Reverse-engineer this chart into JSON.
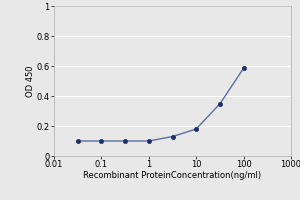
{
  "x_values": [
    0.032,
    0.1,
    0.32,
    1.0,
    3.2,
    10.0,
    32.0,
    100.0
  ],
  "y_values": [
    0.1,
    0.1,
    0.1,
    0.1,
    0.13,
    0.18,
    0.35,
    0.585
  ],
  "line_color": "#5a6fa0",
  "marker_color": "#1e2d6e",
  "marker_size": 3,
  "xlabel": "Recombinant ProteinConcentration(ng/ml)",
  "ylabel": "OD 450",
  "xlim": [
    0.01,
    1000
  ],
  "ylim": [
    0,
    1.0
  ],
  "yticks": [
    0,
    0.2,
    0.4,
    0.6,
    0.8,
    1
  ],
  "xticks": [
    0.01,
    0.1,
    1,
    10,
    100,
    1000
  ],
  "xtick_labels": [
    "0.01",
    "0.1",
    "1",
    "10",
    "100",
    "1000"
  ],
  "background_color": "#e8e8e8",
  "plot_bg_color": "#e8e8e8",
  "grid_color": "#ffffff",
  "axis_fontsize": 6,
  "tick_fontsize": 6,
  "ylabel_fontsize": 6,
  "linewidth": 1.0
}
